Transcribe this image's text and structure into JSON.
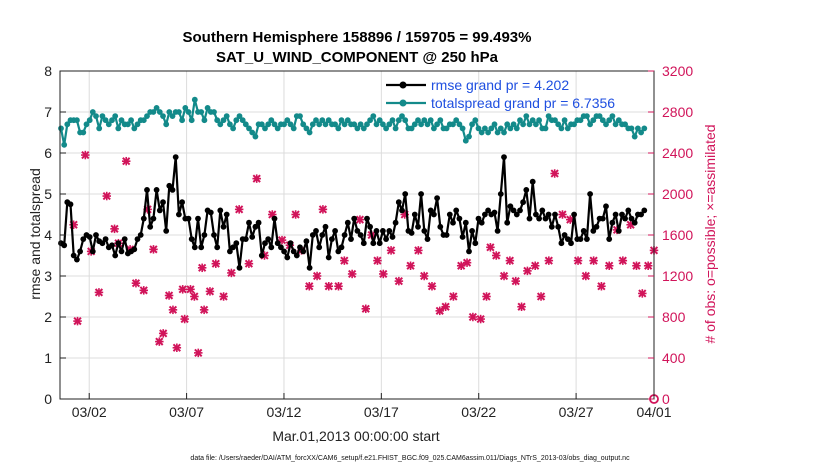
{
  "chart_data": {
    "type": "line",
    "title": "Southern Hemisphere 158896 / 159705 = 99.493%",
    "subtitle": "SAT_U_WIND_COMPONENT @ 250 hPa",
    "xlabel": "Mar.01,2013 00:00:00 start",
    "ylabel": "rmse and totalspread",
    "ylabel_right": "# of obs: o=possible; ×=assimilated",
    "ylim": [
      0,
      8
    ],
    "ylim_right": [
      0,
      3200
    ],
    "xlim": [
      0.5,
      31
    ],
    "yticks": [
      "0",
      "1",
      "2",
      "3",
      "4",
      "5",
      "6",
      "7",
      "8"
    ],
    "yticks_right": [
      "0",
      "400",
      "800",
      "1200",
      "1600",
      "2000",
      "2400",
      "2800",
      "3200"
    ],
    "xticks": [
      {
        "label": "03/02",
        "day": 2
      },
      {
        "label": "03/07",
        "day": 7
      },
      {
        "label": "03/12",
        "day": 12
      },
      {
        "label": "03/17",
        "day": 17
      },
      {
        "label": "03/22",
        "day": 22
      },
      {
        "label": "03/27",
        "day": 27
      },
      {
        "label": "04/01",
        "day": 32
      }
    ],
    "grid": true,
    "legend_position": "top-right",
    "footnote": "data file: /Users/raeder/DAI/ATM_forcXX/CAM6_setup/f.e21.FHIST_BGC.f09_025.CAM6assim.011/Diags_NTrS_2013-03/obs_diag_output.nc",
    "series": [
      {
        "name": "rmse grand pr = 4.202",
        "color": "#000000",
        "marker": "dot",
        "values": [
          3.8,
          3.75,
          4.8,
          4.75,
          3.5,
          3.4,
          3.6,
          3.9,
          4.0,
          3.95,
          3.6,
          4.0,
          3.85,
          3.8,
          3.9,
          3.7,
          3.75,
          3.5,
          3.8,
          3.6,
          3.9,
          3.55,
          3.6,
          3.65,
          3.9,
          4.0,
          4.4,
          5.1,
          4.2,
          4.4,
          5.1,
          4.6,
          4.8,
          4.1,
          5.2,
          5.1,
          5.9,
          4.5,
          4.8,
          4.4,
          4.4,
          3.9,
          3.7,
          4.4,
          3.7,
          4.0,
          4.6,
          4.55,
          4.0,
          3.7,
          4.6,
          4.2,
          4.5,
          3.6,
          3.7,
          3.8,
          3.2,
          3.9,
          3.9,
          4.3,
          3.95,
          4.2,
          4.3,
          3.5,
          3.8,
          3.9,
          3.7,
          4.4,
          3.8,
          3.7,
          3.6,
          3.45,
          3.8,
          3.6,
          3.5,
          3.7,
          3.6,
          3.85,
          3.2,
          4.0,
          4.1,
          3.7,
          4.0,
          4.2,
          3.45,
          3.9,
          4.1,
          3.6,
          3.7,
          4.0,
          4.3,
          3.9,
          4.4,
          4.1,
          4.0,
          3.8,
          4.4,
          4.2,
          3.8,
          4.1,
          3.8,
          4.1,
          3.9,
          4.1,
          3.95,
          4.3,
          4.8,
          4.6,
          5.0,
          4.1,
          4.05,
          4.5,
          4.2,
          5.0,
          4.1,
          3.9,
          4.6,
          4.5,
          4.9,
          4.2,
          4.0,
          4.0,
          4.5,
          4.3,
          4.6,
          4.4,
          3.95,
          4.3,
          3.6,
          4.1,
          3.8,
          4.4,
          4.3,
          4.5,
          4.6,
          4.5,
          4.55,
          4.1,
          5.0,
          5.9,
          4.3,
          4.7,
          4.6,
          4.5,
          4.6,
          4.8,
          5.1,
          4.4,
          5.3,
          4.5,
          4.4,
          4.6,
          4.4,
          4.5,
          4.2,
          4.5,
          4.2,
          3.8,
          4.0,
          3.9,
          3.8,
          4.5,
          3.9,
          3.9,
          4.1,
          3.9,
          5.0,
          4.1,
          4.2,
          4.4,
          4.4,
          4.7,
          3.9,
          4.3,
          4.5,
          4.1,
          4.5,
          4.4,
          4.6,
          4.4,
          4.3,
          4.5,
          4.5,
          4.6
        ]
      },
      {
        "name": "totalspread grand pr = 6.7356",
        "color": "#138a8a",
        "marker": "dot",
        "values": [
          6.6,
          6.2,
          6.7,
          6.8,
          6.8,
          6.8,
          6.5,
          6.5,
          6.7,
          6.8,
          7.0,
          6.9,
          6.6,
          6.9,
          6.8,
          6.7,
          6.8,
          6.9,
          6.6,
          6.8,
          6.7,
          6.7,
          6.8,
          6.6,
          6.7,
          6.8,
          6.8,
          6.9,
          7.0,
          7.0,
          7.1,
          7.0,
          6.9,
          6.7,
          7.0,
          6.9,
          7.0,
          7.0,
          6.8,
          7.1,
          7.0,
          6.8,
          7.3,
          7.0,
          7.0,
          6.8,
          7.1,
          7.0,
          7.0,
          6.8,
          6.7,
          6.8,
          6.9,
          6.7,
          6.6,
          6.8,
          6.9,
          6.8,
          6.7,
          6.6,
          6.5,
          6.4,
          6.7,
          6.7,
          6.6,
          6.7,
          6.8,
          6.7,
          6.6,
          6.7,
          6.7,
          6.8,
          6.7,
          6.6,
          6.9,
          6.9,
          6.7,
          6.6,
          6.5,
          6.7,
          6.8,
          6.7,
          6.8,
          6.7,
          6.8,
          6.7,
          6.7,
          6.6,
          6.8,
          6.7,
          6.8,
          6.7,
          6.7,
          6.6,
          6.7,
          6.6,
          6.7,
          6.8,
          6.9,
          6.7,
          6.8,
          6.7,
          6.6,
          6.7,
          6.8,
          6.6,
          6.8,
          6.9,
          6.8,
          6.6,
          6.6,
          6.7,
          6.8,
          6.7,
          6.8,
          6.7,
          6.8,
          6.6,
          6.7,
          6.8,
          6.6,
          6.6,
          6.7,
          6.7,
          6.8,
          6.7,
          6.6,
          6.3,
          6.4,
          6.7,
          6.8,
          6.6,
          6.5,
          6.6,
          6.5,
          6.6,
          6.7,
          6.5,
          6.6,
          6.5,
          6.7,
          6.6,
          6.7,
          6.6,
          6.8,
          6.7,
          6.9,
          6.7,
          6.8,
          6.7,
          6.8,
          6.6,
          6.6,
          6.9,
          6.8,
          6.8,
          6.7,
          6.6,
          6.8,
          6.6,
          6.7,
          6.7,
          6.8,
          6.8,
          6.9,
          6.9,
          6.7,
          6.8,
          6.9,
          6.9,
          6.8,
          6.7,
          6.8,
          6.9,
          6.7,
          6.8,
          6.7,
          6.7,
          6.6,
          6.6,
          6.4,
          6.6,
          6.5,
          6.6
        ]
      }
    ],
    "assimilated_obs": {
      "name": "assimilated",
      "color": "#d1145a",
      "marker": "x",
      "axis": "right",
      "points": [
        [
          1.2,
          1700
        ],
        [
          1.4,
          760
        ],
        [
          1.8,
          2380
        ],
        [
          2.1,
          1440
        ],
        [
          2.5,
          1040
        ],
        [
          2.9,
          1980
        ],
        [
          3.3,
          1660
        ],
        [
          3.5,
          1520
        ],
        [
          3.9,
          2320
        ],
        [
          4.1,
          1460
        ],
        [
          4.4,
          1130
        ],
        [
          4.8,
          1060
        ],
        [
          5.0,
          1850
        ],
        [
          5.3,
          1460
        ],
        [
          5.6,
          560
        ],
        [
          5.8,
          640
        ],
        [
          6.1,
          1010
        ],
        [
          6.3,
          870
        ],
        [
          6.5,
          500
        ],
        [
          6.8,
          1070
        ],
        [
          6.9,
          780
        ],
        [
          7.2,
          1070
        ],
        [
          7.4,
          1000
        ],
        [
          7.6,
          450
        ],
        [
          7.8,
          1280
        ],
        [
          7.9,
          870
        ],
        [
          8.2,
          1050
        ],
        [
          8.5,
          1320
        ],
        [
          8.9,
          1000
        ],
        [
          9.3,
          1230
        ],
        [
          9.7,
          1850
        ],
        [
          10.2,
          1320
        ],
        [
          10.6,
          2150
        ],
        [
          11.0,
          1400
        ],
        [
          11.4,
          1800
        ],
        [
          11.9,
          1550
        ],
        [
          12.3,
          1500
        ],
        [
          12.6,
          1800
        ],
        [
          12.9,
          1450
        ],
        [
          13.3,
          1100
        ],
        [
          13.7,
          1200
        ],
        [
          14.0,
          1850
        ],
        [
          14.3,
          1100
        ],
        [
          14.8,
          1100
        ],
        [
          15.1,
          1350
        ],
        [
          15.5,
          1220
        ],
        [
          15.9,
          1750
        ],
        [
          16.2,
          880
        ],
        [
          16.5,
          1600
        ],
        [
          16.8,
          1350
        ],
        [
          17.1,
          1220
        ],
        [
          17.5,
          1450
        ],
        [
          17.9,
          1150
        ],
        [
          18.2,
          1800
        ],
        [
          18.5,
          1300
        ],
        [
          18.9,
          1450
        ],
        [
          19.2,
          1200
        ],
        [
          19.6,
          1100
        ],
        [
          20.0,
          860
        ],
        [
          20.3,
          900
        ],
        [
          20.7,
          1000
        ],
        [
          21.1,
          1300
        ],
        [
          21.4,
          1330
        ],
        [
          21.7,
          800
        ],
        [
          22.1,
          780
        ],
        [
          22.4,
          1000
        ],
        [
          22.6,
          1480
        ],
        [
          22.9,
          1400
        ],
        [
          23.3,
          1200
        ],
        [
          23.6,
          1350
        ],
        [
          23.9,
          1150
        ],
        [
          24.2,
          900
        ],
        [
          24.5,
          1250
        ],
        [
          24.9,
          1300
        ],
        [
          25.2,
          1000
        ],
        [
          25.6,
          1350
        ],
        [
          25.9,
          2200
        ],
        [
          26.3,
          1800
        ],
        [
          26.7,
          1750
        ],
        [
          27.1,
          1350
        ],
        [
          27.5,
          1200
        ],
        [
          27.9,
          1350
        ],
        [
          28.3,
          1100
        ],
        [
          28.7,
          1300
        ],
        [
          29.1,
          1650
        ],
        [
          29.4,
          1350
        ],
        [
          29.8,
          1700
        ],
        [
          30.1,
          1300
        ],
        [
          30.4,
          1030
        ],
        [
          30.7,
          1300
        ],
        [
          31.0,
          1450
        ]
      ]
    },
    "possible_obs": {
      "name": "possible",
      "color": "#d1145a",
      "marker": "o",
      "axis": "right",
      "points": [
        [
          31.0,
          0
        ]
      ]
    }
  }
}
